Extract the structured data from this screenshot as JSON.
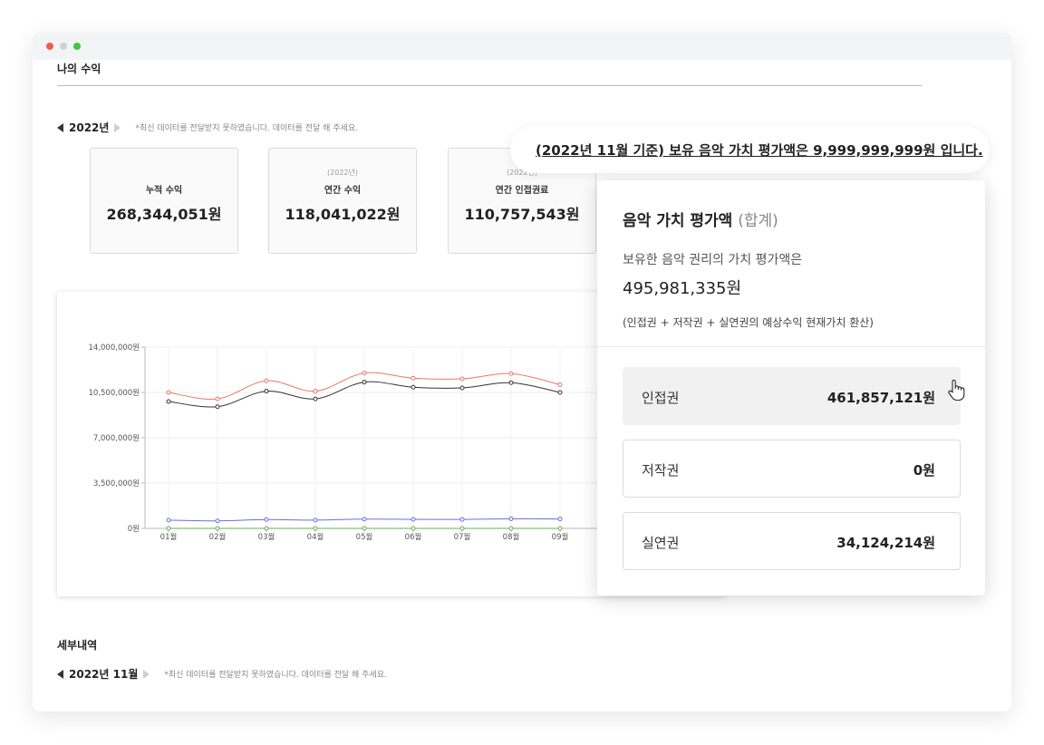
{
  "page": {
    "title": "나의 수익"
  },
  "year_nav": {
    "year": "2022년",
    "note": "*최신 데이터를 전달받지 못하였습니다. 데이터를 전달 해 주세요."
  },
  "cards": [
    {
      "sub": "",
      "label": "누적 수익",
      "value": "268,344,051원"
    },
    {
      "sub": "(2022년)",
      "label": "연간 수익",
      "value": "118,041,022원"
    },
    {
      "sub": "(2022년)",
      "label": "연간 인접권료",
      "value": "110,757,543원"
    }
  ],
  "banner": {
    "text": "(2022년 11월 기준) 보유 음악 가치 평가액은 9,999,999,999원 입니다."
  },
  "popover": {
    "title": "음악 가치 평가액",
    "title_suffix": "(합계)",
    "desc": "보유한 음악 권리의 가치 평가액은",
    "total": "495,981,335원",
    "note": "(인접권 + 저작권 + 실연권의 예상수익 현재가치 환산)",
    "rights": [
      {
        "name": "인접권",
        "amount": "461,857,121원",
        "active": true
      },
      {
        "name": "저작권",
        "amount": "0원",
        "active": false
      },
      {
        "name": "실연권",
        "amount": "34,124,214원",
        "active": false
      }
    ]
  },
  "details": {
    "title": "세부내역",
    "month": "2022년 11월",
    "note": "*최신 데이터를 전달받지 못하였습니다. 데이터를 전달 해 주세요."
  },
  "chart_data": {
    "type": "line",
    "categories": [
      "01월",
      "02월",
      "03월",
      "04월",
      "05월",
      "06월",
      "07월",
      "08월",
      "09월"
    ],
    "y_tick_labels": [
      "0원",
      "3,500,000원",
      "7,000,000원",
      "10,500,000원",
      "14,000,000원"
    ],
    "ylim": [
      0,
      14000000
    ],
    "grid": true,
    "series": [
      {
        "color": "#e8766c",
        "values": [
          10500000,
          10000000,
          11400000,
          10600000,
          12000000,
          11600000,
          11550000,
          11950000,
          11100000
        ]
      },
      {
        "color": "#333333",
        "values": [
          9800000,
          9400000,
          10600000,
          10000000,
          11300000,
          10900000,
          10850000,
          11250000,
          10500000
        ]
      },
      {
        "color": "#6b6bea",
        "values": [
          640000,
          580000,
          680000,
          640000,
          720000,
          700000,
          690000,
          740000,
          730000
        ]
      },
      {
        "color": "#62b34d",
        "values": [
          0,
          0,
          0,
          0,
          0,
          0,
          0,
          0,
          0
        ]
      }
    ]
  }
}
